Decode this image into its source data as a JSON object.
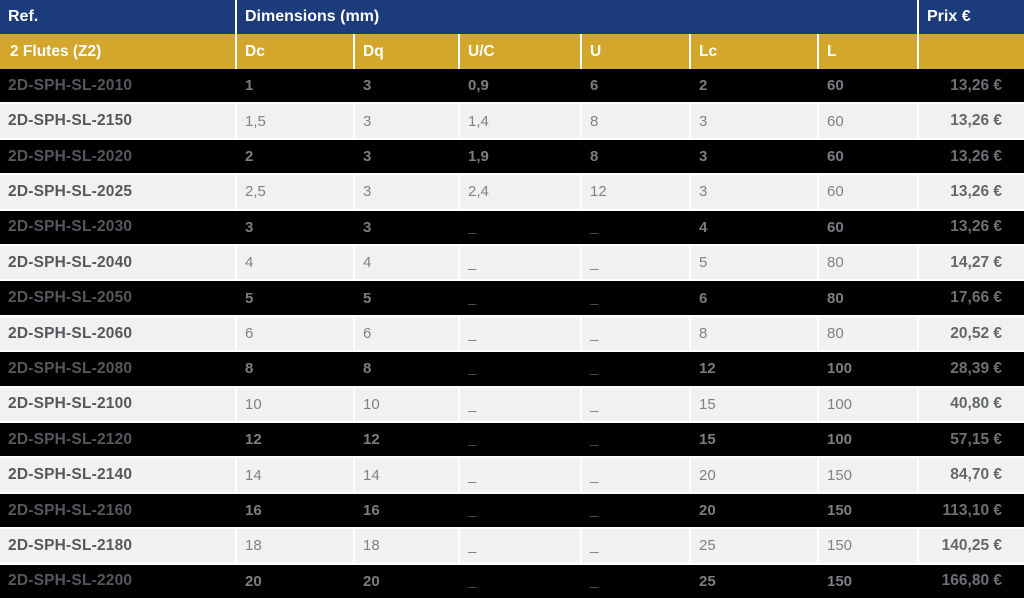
{
  "table": {
    "header1": {
      "ref": "Ref.",
      "dimensions": "Dimensions (mm)",
      "prix": "Prix €"
    },
    "header2": {
      "group": "2 Flutes (Z2)",
      "columns": [
        "Dc",
        "Dq",
        "U/C",
        "U",
        "Lc",
        "L"
      ]
    },
    "rows": [
      {
        "ref": "2D-SPH-SL-2010",
        "dc": "1",
        "dq": "3",
        "uc": "0,9",
        "u": "6",
        "lc": "2",
        "l": "60",
        "prix": "13,26 €"
      },
      {
        "ref": "2D-SPH-SL-2150",
        "dc": "1,5",
        "dq": "3",
        "uc": "1,4",
        "u": "8",
        "lc": "3",
        "l": "60",
        "prix": "13,26 €"
      },
      {
        "ref": "2D-SPH-SL-2020",
        "dc": "2",
        "dq": "3",
        "uc": "1,9",
        "u": "8",
        "lc": "3",
        "l": "60",
        "prix": "13,26 €"
      },
      {
        "ref": "2D-SPH-SL-2025",
        "dc": "2,5",
        "dq": "3",
        "uc": "2,4",
        "u": "12",
        "lc": "3",
        "l": "60",
        "prix": "13,26 €"
      },
      {
        "ref": "2D-SPH-SL-2030",
        "dc": "3",
        "dq": "3",
        "uc": "_",
        "u": "_",
        "lc": "4",
        "l": "60",
        "prix": "13,26 €"
      },
      {
        "ref": "2D-SPH-SL-2040",
        "dc": "4",
        "dq": "4",
        "uc": "_",
        "u": "_",
        "lc": "5",
        "l": "80",
        "prix": "14,27 €"
      },
      {
        "ref": "2D-SPH-SL-2050",
        "dc": "5",
        "dq": "5",
        "uc": "_",
        "u": "_",
        "lc": "6",
        "l": "80",
        "prix": "17,66 €"
      },
      {
        "ref": "2D-SPH-SL-2060",
        "dc": "6",
        "dq": "6",
        "uc": "_",
        "u": "_",
        "lc": "8",
        "l": "80",
        "prix": "20,52 €"
      },
      {
        "ref": "2D-SPH-SL-2080",
        "dc": "8",
        "dq": "8",
        "uc": "_",
        "u": "_",
        "lc": "12",
        "l": "100",
        "prix": "28,39 €"
      },
      {
        "ref": "2D-SPH-SL-2100",
        "dc": "10",
        "dq": "10",
        "uc": "_",
        "u": "_",
        "lc": "15",
        "l": "100",
        "prix": "40,80 €"
      },
      {
        "ref": "2D-SPH-SL-2120",
        "dc": "12",
        "dq": "12",
        "uc": "_",
        "u": "_",
        "lc": "15",
        "l": "100",
        "prix": "57,15 €"
      },
      {
        "ref": "2D-SPH-SL-2140",
        "dc": "14",
        "dq": "14",
        "uc": "_",
        "u": "_",
        "lc": "20",
        "l": "150",
        "prix": "84,70 €"
      },
      {
        "ref": "2D-SPH-SL-2160",
        "dc": "16",
        "dq": "16",
        "uc": "_",
        "u": "_",
        "lc": "20",
        "l": "150",
        "prix": "113,10 €"
      },
      {
        "ref": "2D-SPH-SL-2180",
        "dc": "18",
        "dq": "18",
        "uc": "_",
        "u": "_",
        "lc": "25",
        "l": "150",
        "prix": "140,25 €"
      },
      {
        "ref": "2D-SPH-SL-2200",
        "dc": "20",
        "dq": "20",
        "uc": "_",
        "u": "_",
        "lc": "25",
        "l": "150",
        "prix": "166,80 €"
      }
    ],
    "colors": {
      "header_blue": "#1c3b7b",
      "header_gold": "#d3a62c",
      "row_dark": "#000000",
      "row_light": "#f1f2f0"
    }
  }
}
